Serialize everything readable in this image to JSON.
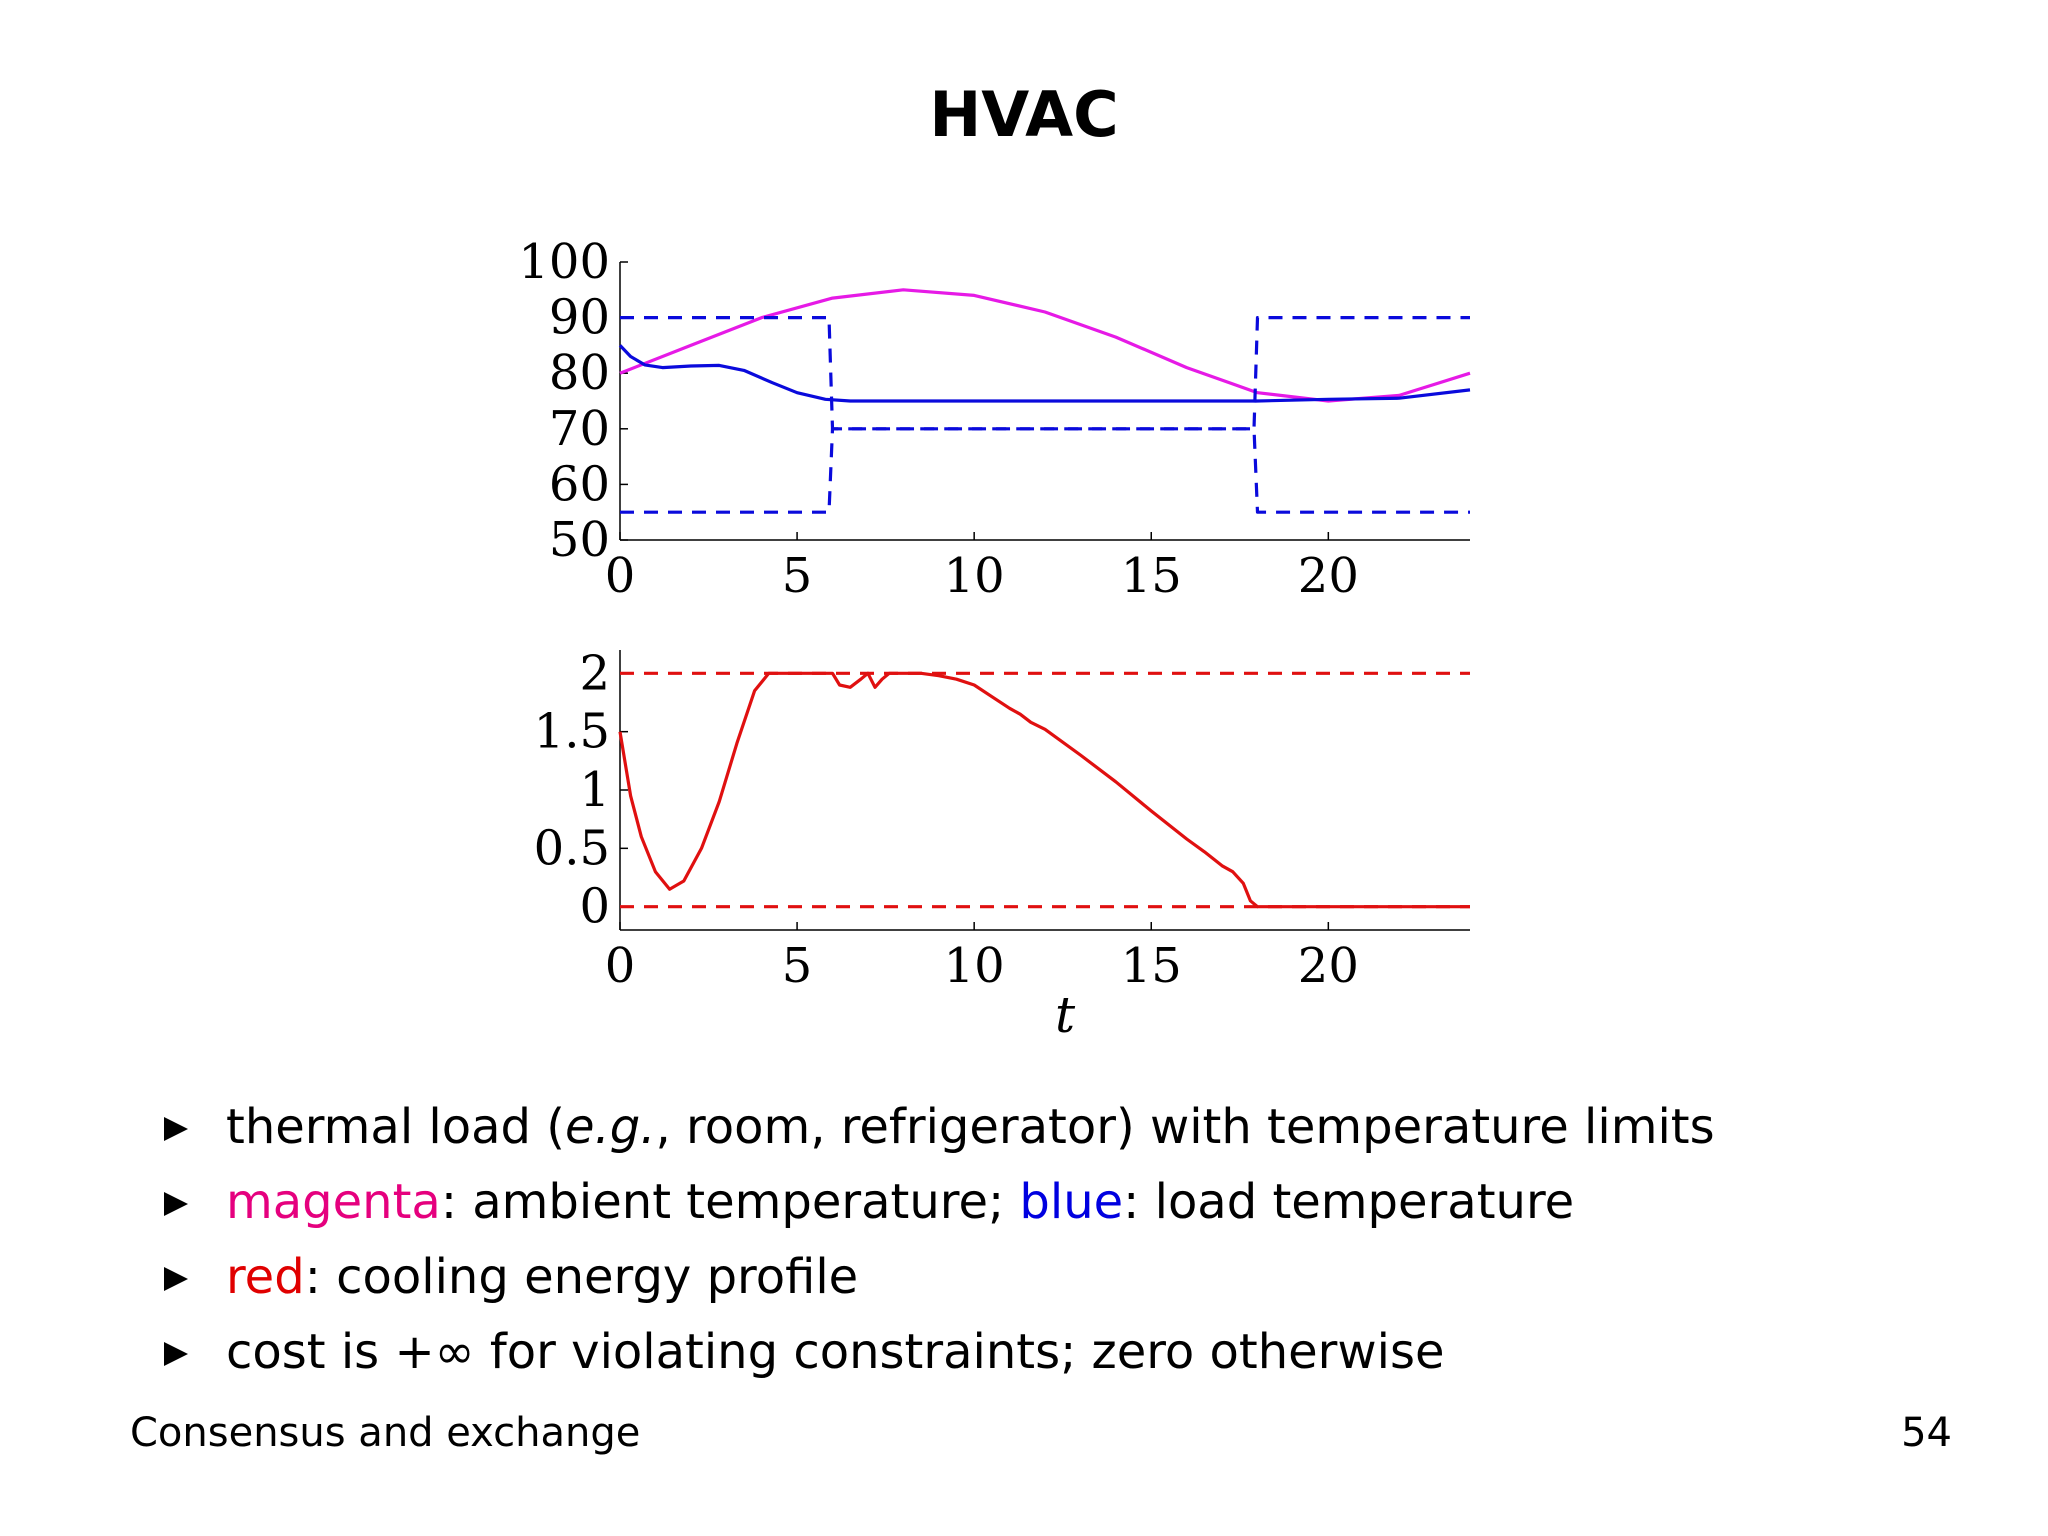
{
  "slide": {
    "title": "HVAC",
    "footer_left": "Consensus and exchange",
    "page_number": "54"
  },
  "bullets": [
    {
      "parts": [
        {
          "text": "thermal load ("
        },
        {
          "text": "e.g.",
          "style": "italic"
        },
        {
          "text": ", room, refrigerator) with temperature limits"
        }
      ]
    },
    {
      "parts": [
        {
          "text": "magenta",
          "color": "magenta"
        },
        {
          "text": ": ambient temperature; "
        },
        {
          "text": "blue",
          "color": "blue"
        },
        {
          "text": ": load temperature"
        }
      ]
    },
    {
      "parts": [
        {
          "text": "red",
          "color": "red"
        },
        {
          "text": ": cooling energy profile"
        }
      ]
    },
    {
      "parts": [
        {
          "text": "cost is +∞ for violating constraints; zero otherwise"
        }
      ]
    }
  ],
  "colors": {
    "magenta": "#e61ae6",
    "blue": "#0a0adc",
    "red": "#e01010",
    "text_magenta": "#e5007e",
    "text_blue": "#0000e0",
    "text_red": "#e00000"
  },
  "chart_data": [
    {
      "type": "line",
      "title": "",
      "xlabel": "",
      "ylabel": "",
      "xlim": [
        0,
        24
      ],
      "ylim": [
        50,
        100
      ],
      "xticks": [
        0,
        5,
        10,
        15,
        20
      ],
      "yticks": [
        50,
        60,
        70,
        80,
        90,
        100
      ],
      "grid": false,
      "series": [
        {
          "color": "#e61ae6",
          "style": "solid",
          "x": [
            0,
            2,
            4,
            6,
            8,
            10,
            12,
            14,
            16,
            18,
            20,
            22,
            24
          ],
          "y": [
            80,
            85,
            90,
            93.5,
            95,
            94,
            91,
            86.5,
            81,
            76.5,
            75,
            76,
            80
          ]
        },
        {
          "color": "#0a0adc",
          "style": "solid",
          "x": [
            0,
            0.3,
            0.7,
            1.2,
            2,
            2.8,
            3.5,
            4.3,
            5,
            5.8,
            6.5,
            8,
            12,
            16,
            18,
            20,
            22,
            24
          ],
          "y": [
            85,
            83,
            81.5,
            81,
            81.3,
            81.4,
            80.5,
            78.3,
            76.5,
            75.3,
            75,
            75,
            75,
            75,
            75,
            75.3,
            75.5,
            77
          ]
        },
        {
          "color": "#0a0adc",
          "style": "dashed",
          "x": [
            0,
            5.9,
            6.0,
            17.9,
            18.0,
            24
          ],
          "y": [
            90,
            90,
            70,
            70,
            90,
            90
          ]
        },
        {
          "color": "#0a0adc",
          "style": "dashed",
          "x": [
            0,
            5.9,
            6.0,
            17.9,
            18.0,
            24
          ],
          "y": [
            55,
            55,
            70,
            70,
            55,
            55
          ]
        }
      ]
    },
    {
      "type": "line",
      "title": "",
      "xlabel": "t",
      "ylabel": "",
      "xlim": [
        0,
        24
      ],
      "ylim": [
        -0.2,
        2.2
      ],
      "xticks": [
        0,
        5,
        10,
        15,
        20
      ],
      "yticks": [
        0,
        0.5,
        1,
        1.5,
        2
      ],
      "ytick_labels": [
        "0",
        "0.5",
        "1",
        "1.5",
        "2"
      ],
      "grid": false,
      "series": [
        {
          "color": "#e01010",
          "style": "solid",
          "x": [
            0,
            0.3,
            0.6,
            1.0,
            1.4,
            1.8,
            2.3,
            2.8,
            3.3,
            3.8,
            4.2,
            4.5,
            5.5,
            6,
            6.2,
            6.5,
            6.8,
            7.0,
            7.2,
            7.4,
            7.6,
            8,
            8.5,
            9,
            9.5,
            10,
            10.5,
            11,
            11.3,
            11.6,
            12,
            13,
            14,
            15,
            16,
            16.5,
            17,
            17.3,
            17.6,
            17.8,
            18,
            20,
            22,
            24
          ],
          "y": [
            1.5,
            0.95,
            0.6,
            0.3,
            0.15,
            0.22,
            0.5,
            0.9,
            1.4,
            1.85,
            2.0,
            2.0,
            2.0,
            2.0,
            1.9,
            1.88,
            1.95,
            2.0,
            1.88,
            1.95,
            2.0,
            2.0,
            2.0,
            1.98,
            1.95,
            1.9,
            1.8,
            1.7,
            1.65,
            1.58,
            1.52,
            1.3,
            1.07,
            0.82,
            0.58,
            0.47,
            0.35,
            0.3,
            0.2,
            0.05,
            0,
            0,
            0,
            0
          ]
        },
        {
          "color": "#e01010",
          "style": "dashed",
          "x": [
            0,
            24
          ],
          "y": [
            2,
            2
          ]
        },
        {
          "color": "#e01010",
          "style": "dashed",
          "x": [
            0,
            24
          ],
          "y": [
            0,
            0
          ]
        }
      ]
    }
  ]
}
